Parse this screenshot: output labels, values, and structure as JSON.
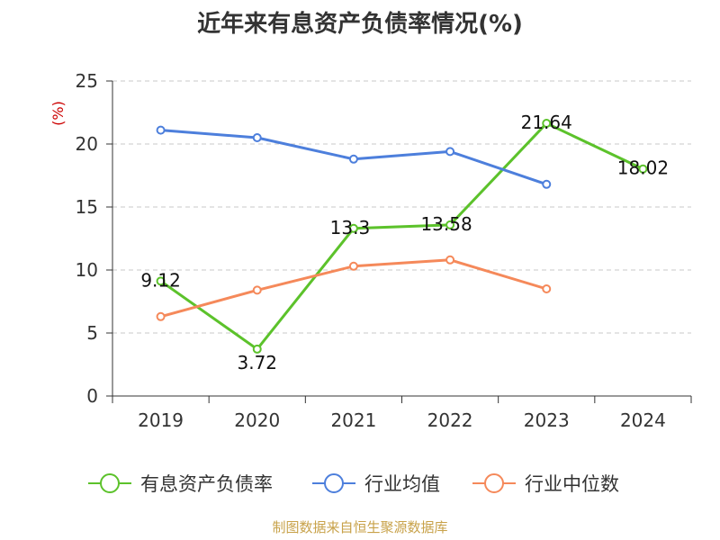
{
  "chart_data": {
    "type": "line",
    "title": "近年来有息资产负债率情况(%)",
    "ylabel": "(%)",
    "ylim": [
      0,
      25
    ],
    "yticks": [
      0,
      5,
      10,
      15,
      20,
      25
    ],
    "categories": [
      "2019",
      "2020",
      "2021",
      "2022",
      "2023",
      "2024"
    ],
    "grid": true,
    "legend_position": "bottom",
    "series": [
      {
        "name": "有息资产负债率",
        "color": "#5cc22b",
        "show_labels": true,
        "values": [
          9.12,
          3.72,
          13.3,
          13.58,
          21.64,
          18.02
        ],
        "labels": [
          "9.12",
          "3.72",
          "13.3",
          "13.58",
          "21.64",
          "18.02"
        ]
      },
      {
        "name": "行业均值",
        "color": "#4d7fdc",
        "show_labels": false,
        "values": [
          21.1,
          20.5,
          18.8,
          19.4,
          16.8,
          null
        ]
      },
      {
        "name": "行业中位数",
        "color": "#f5895a",
        "show_labels": false,
        "values": [
          6.3,
          8.4,
          10.3,
          10.8,
          8.5,
          null
        ]
      }
    ],
    "source": "制图数据来自恒生聚源数据库"
  }
}
